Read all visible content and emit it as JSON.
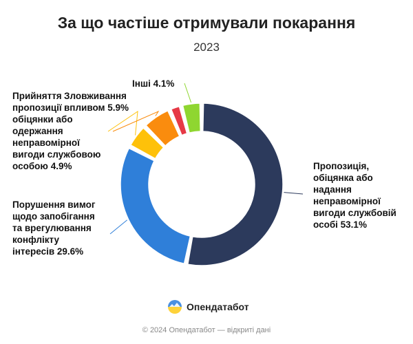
{
  "title": "За що частіше отримували покарання",
  "subtitle": "2023",
  "brand": {
    "name": "Опендатабот"
  },
  "footer": "© 2024 Опендатабот — відкриті дані",
  "chart_data": {
    "type": "pie",
    "donut": true,
    "title": "За що частіше отримували покарання",
    "subtitle": "2023",
    "categories": [
      "Пропозиція, обіцянка або надання неправомірної вигоди службовій особі",
      "Порушення вимог щодо запобігання та врегулювання конфлікту інтересів",
      "Прийняття пропозиції обіцянки або одержання неправомірної вигоди службовою особою",
      "Зловживання впливом",
      "",
      "Інші"
    ],
    "values": [
      53.1,
      29.6,
      4.9,
      5.9,
      2.4,
      4.1
    ],
    "colors": [
      "#2c3a5c",
      "#2f7fd9",
      "#fec10a",
      "#fa8c0e",
      "#e63946",
      "#8fd630"
    ],
    "labels": [
      "Пропозиція,\nобіцянка або\nнадання\nнеправомірної\nвигоди службовій\nособі 53.1%",
      "Порушення вимог\nщодо запобігання\nта врегулювання\nконфлікту\nінтересів 29.6%",
      "Прийняття\nпропозиції\nобіцянки або\nодержання\nнеправомірної\nвигоди службовою\nособою 4.9%",
      "Зловживання\nвпливом 5.9%",
      "",
      "Інші 4.1%"
    ]
  }
}
